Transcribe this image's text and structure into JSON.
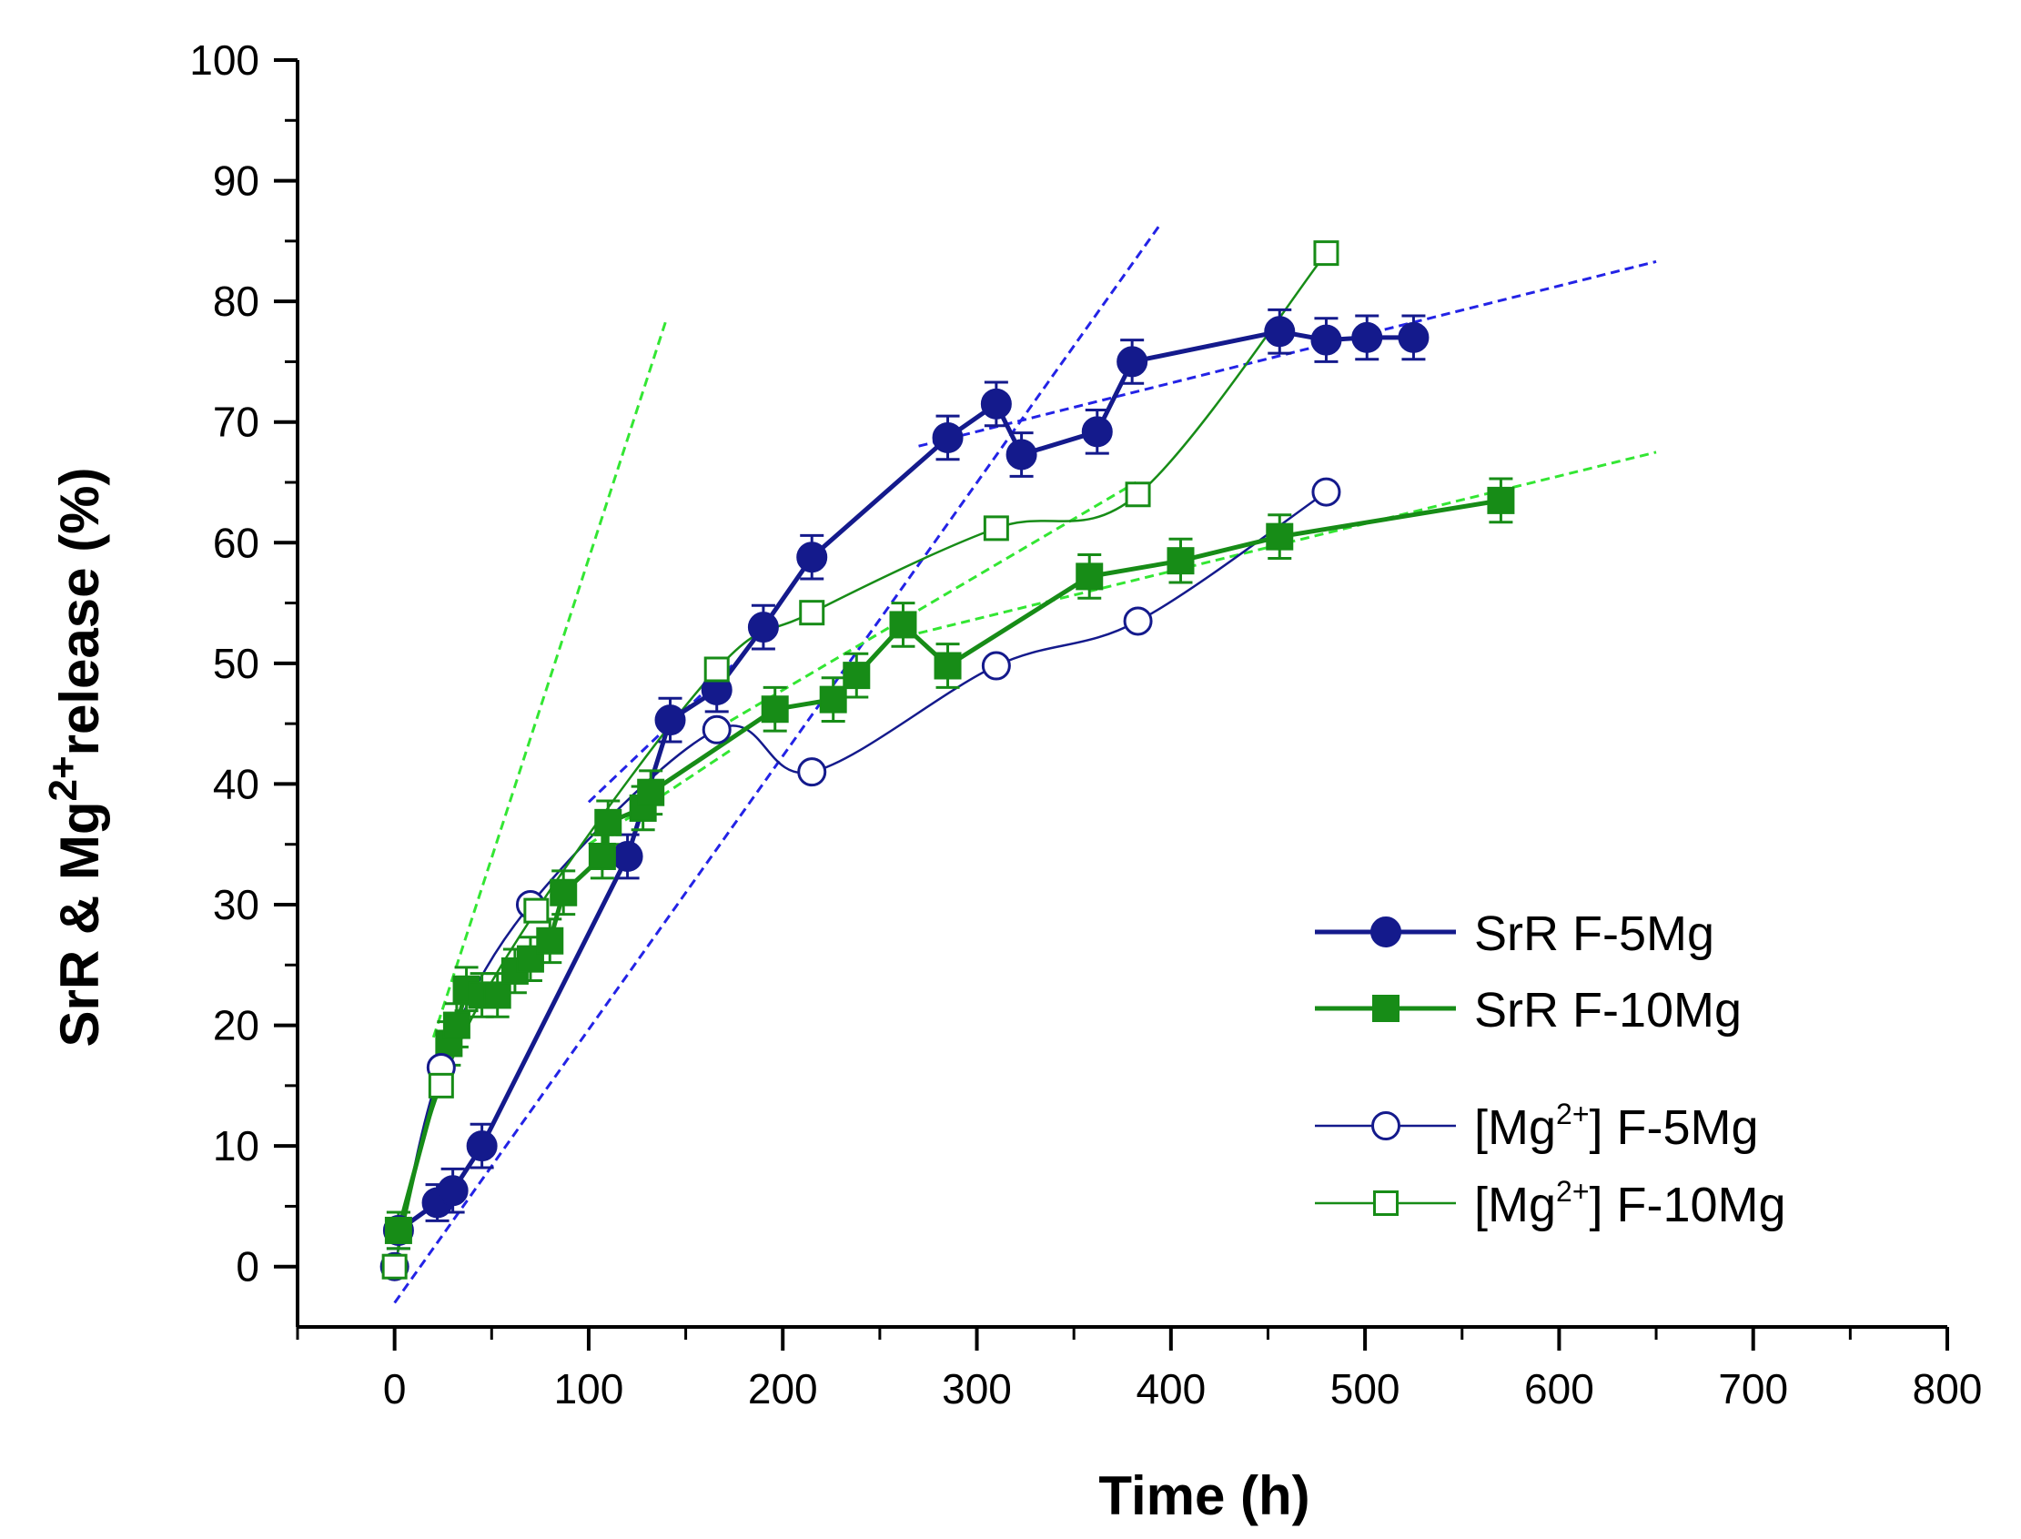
{
  "chart_data": {
    "type": "scatter",
    "xlabel": "Time (h)",
    "ylabel": {
      "pre": "SrR & Mg",
      "sup": "2+",
      "post": "release (%)"
    },
    "xlim": [
      -50,
      800
    ],
    "ylim": [
      -5,
      100
    ],
    "xticks": [
      0,
      100,
      200,
      300,
      400,
      500,
      600,
      700,
      800
    ],
    "yticks": [
      0,
      10,
      20,
      30,
      40,
      50,
      60,
      70,
      80,
      90,
      100
    ],
    "legend_position": "lower-right",
    "colors": {
      "navy": "#141a8c",
      "green": "#178c17",
      "blue_fit": "#2323e6",
      "green_fit": "#33e633"
    },
    "series": [
      {
        "name": "SrR F-5Mg",
        "legend_label": {
          "pre": "SrR F-5Mg",
          "sup": "",
          "post": ""
        },
        "marker": "circle-filled",
        "color": "#141a8c",
        "line": "thick-straight",
        "x": [
          2,
          22,
          30,
          45,
          120,
          142,
          166,
          190,
          215,
          285,
          310,
          323,
          362,
          380,
          456,
          480,
          501,
          525
        ],
        "y": [
          3,
          5.3,
          6.3,
          10,
          34,
          45.3,
          47.8,
          53,
          58.8,
          68.7,
          71.5,
          67.3,
          69.2,
          75,
          77.5,
          76.8,
          77,
          77
        ],
        "err": [
          1.5,
          1.5,
          1.8,
          1.8,
          1.8,
          1.8,
          1.8,
          1.8,
          1.8,
          1.8,
          1.8,
          1.8,
          1.8,
          1.8,
          1.8,
          1.8,
          1.8,
          1.8
        ]
      },
      {
        "name": "SrR F-10Mg",
        "legend_label": {
          "pre": "SrR F-10Mg",
          "sup": "",
          "post": ""
        },
        "marker": "square-filled",
        "color": "#178c17",
        "line": "thick-straight",
        "x": [
          2,
          28,
          32,
          37,
          45,
          53,
          62,
          70,
          80,
          87,
          107,
          110,
          128,
          132,
          196,
          226,
          238,
          262,
          285,
          358,
          405,
          456,
          570
        ],
        "y": [
          3,
          18.5,
          20,
          23,
          22.5,
          22.5,
          24.5,
          25.5,
          27,
          31,
          34,
          36.8,
          38,
          39.3,
          46.2,
          47,
          49,
          53.2,
          49.8,
          57.2,
          58.5,
          60.5,
          63.5
        ],
        "err": [
          1.5,
          1.8,
          1.8,
          1.8,
          1.8,
          1.8,
          1.8,
          1.8,
          1.8,
          1.8,
          1.8,
          1.8,
          1.8,
          1.8,
          1.8,
          1.8,
          1.8,
          1.8,
          1.8,
          1.8,
          1.8,
          1.8,
          1.8
        ]
      },
      {
        "name": "[Mg2+] F-5Mg",
        "legend_label": {
          "pre": "[Mg",
          "sup": "2+",
          "post": "] F-5Mg"
        },
        "marker": "circle-open",
        "color": "#141a8c",
        "line": "thin-smooth",
        "x": [
          0,
          24,
          70,
          166,
          215,
          310,
          383,
          480
        ],
        "y": [
          0,
          16.5,
          30,
          44.5,
          41,
          49.8,
          53.5,
          64.2
        ]
      },
      {
        "name": "[Mg2+] F-10Mg",
        "legend_label": {
          "pre": "[Mg",
          "sup": "2+",
          "post": "] F-10Mg"
        },
        "marker": "square-open",
        "color": "#178c17",
        "line": "thin-smooth",
        "x": [
          0,
          24,
          73,
          166,
          215,
          310,
          383,
          480
        ],
        "y": [
          0,
          15,
          29.5,
          49.5,
          54.2,
          61.2,
          64,
          84
        ]
      }
    ],
    "fit_lines": [
      {
        "color": "#2323e6",
        "x": [
          0,
          395
        ],
        "y": [
          -3,
          86.5
        ]
      },
      {
        "color": "#2323e6",
        "x": [
          100,
          175
        ],
        "y": [
          38.5,
          50
        ]
      },
      {
        "color": "#2323e6",
        "x": [
          270,
          650
        ],
        "y": [
          68,
          83.3
        ]
      },
      {
        "color": "#33e633",
        "x": [
          20,
          140
        ],
        "y": [
          19,
          78.5
        ]
      },
      {
        "color": "#33e633",
        "x": [
          100,
          175
        ],
        "y": [
          35,
          43
        ]
      },
      {
        "color": "#33e633",
        "x": [
          160,
          382
        ],
        "y": [
          44,
          65
        ]
      },
      {
        "color": "#33e633",
        "x": [
          270,
          650
        ],
        "y": [
          52.5,
          67.5
        ]
      }
    ]
  }
}
